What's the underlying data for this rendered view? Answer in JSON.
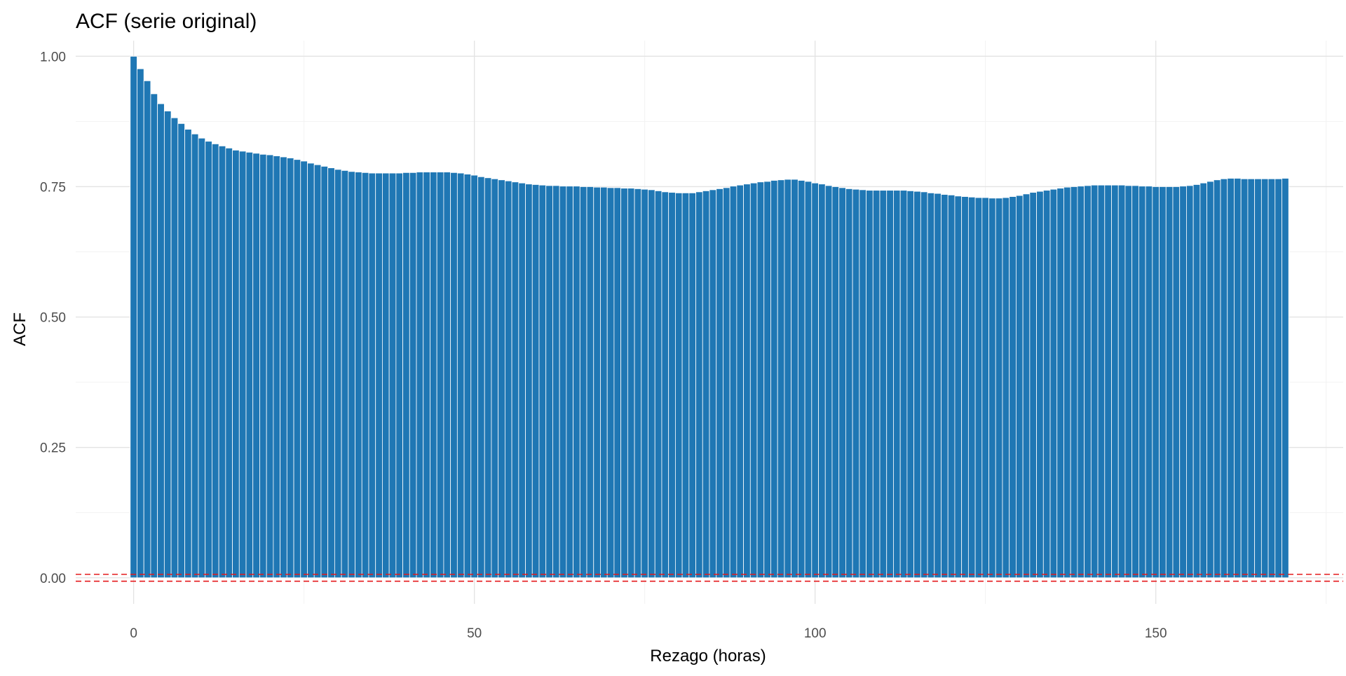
{
  "colors": {
    "bar": "#1f77b4",
    "ci_line": "#e41a1c",
    "grid_major": "#e3e3e3",
    "grid_minor": "#f2f2f2"
  },
  "chart_data": {
    "type": "bar",
    "title": "ACF (serie original)",
    "xlabel": "Rezago (horas)",
    "ylabel": "ACF",
    "xlim": [
      -8.5,
      177.5
    ],
    "ylim": [
      -0.05,
      1.03
    ],
    "xticks": [
      0,
      50,
      100,
      150
    ],
    "xtick_labels": [
      "0",
      "50",
      "100",
      "150"
    ],
    "yticks": [
      0,
      0.25,
      0.5,
      0.75,
      1
    ],
    "ytick_labels": [
      "0.00",
      "0.25",
      "0.50",
      "0.75",
      "1.00"
    ],
    "grid": true,
    "confidence_band": [
      -0.0066,
      0.0066
    ],
    "x_start": 0,
    "values": [
      1.0,
      0.976,
      0.953,
      0.928,
      0.909,
      0.895,
      0.882,
      0.871,
      0.86,
      0.851,
      0.843,
      0.837,
      0.832,
      0.828,
      0.824,
      0.82,
      0.818,
      0.816,
      0.814,
      0.812,
      0.811,
      0.809,
      0.807,
      0.805,
      0.802,
      0.799,
      0.795,
      0.792,
      0.789,
      0.786,
      0.783,
      0.781,
      0.779,
      0.778,
      0.777,
      0.776,
      0.776,
      0.776,
      0.776,
      0.776,
      0.777,
      0.777,
      0.778,
      0.778,
      0.778,
      0.778,
      0.778,
      0.777,
      0.776,
      0.774,
      0.772,
      0.769,
      0.767,
      0.765,
      0.763,
      0.761,
      0.759,
      0.757,
      0.755,
      0.754,
      0.753,
      0.752,
      0.752,
      0.751,
      0.751,
      0.751,
      0.75,
      0.75,
      0.749,
      0.749,
      0.748,
      0.748,
      0.747,
      0.747,
      0.746,
      0.745,
      0.744,
      0.742,
      0.74,
      0.739,
      0.738,
      0.738,
      0.738,
      0.74,
      0.742,
      0.744,
      0.746,
      0.748,
      0.751,
      0.753,
      0.755,
      0.757,
      0.759,
      0.76,
      0.762,
      0.763,
      0.764,
      0.764,
      0.762,
      0.76,
      0.757,
      0.755,
      0.752,
      0.75,
      0.748,
      0.746,
      0.745,
      0.744,
      0.743,
      0.743,
      0.743,
      0.743,
      0.743,
      0.743,
      0.742,
      0.741,
      0.74,
      0.738,
      0.737,
      0.735,
      0.734,
      0.732,
      0.731,
      0.73,
      0.729,
      0.729,
      0.728,
      0.728,
      0.729,
      0.731,
      0.733,
      0.736,
      0.739,
      0.741,
      0.743,
      0.745,
      0.747,
      0.749,
      0.75,
      0.751,
      0.752,
      0.753,
      0.753,
      0.753,
      0.753,
      0.753,
      0.752,
      0.752,
      0.751,
      0.751,
      0.75,
      0.75,
      0.75,
      0.75,
      0.751,
      0.752,
      0.754,
      0.757,
      0.76,
      0.763,
      0.765,
      0.766,
      0.766,
      0.765,
      0.765,
      0.765,
      0.765,
      0.765,
      0.765,
      0.766
    ]
  }
}
